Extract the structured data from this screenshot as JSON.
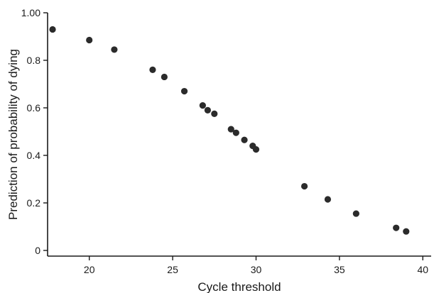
{
  "chart_data": {
    "type": "scatter",
    "title": "",
    "xlabel": "Cycle threshold",
    "ylabel": "Prediction of probability of dying",
    "xlim": [
      17.5,
      40.5
    ],
    "ylim": [
      0,
      1.0
    ],
    "x_ticks": [
      20,
      25,
      30,
      35,
      40
    ],
    "x_tick_labels": [
      "20",
      "25",
      "30",
      "35",
      "40"
    ],
    "y_ticks": [
      0,
      0.2,
      0.4,
      0.6,
      0.8,
      1.0
    ],
    "y_tick_labels": [
      "0",
      "0.2",
      "0.4",
      "0.6",
      "0.8",
      "1.00"
    ],
    "grid": false,
    "point_color": "#2b2b2b",
    "points": [
      {
        "x": 17.8,
        "y": 0.93
      },
      {
        "x": 20.0,
        "y": 0.885
      },
      {
        "x": 21.5,
        "y": 0.845
      },
      {
        "x": 23.8,
        "y": 0.76
      },
      {
        "x": 24.5,
        "y": 0.73
      },
      {
        "x": 25.7,
        "y": 0.67
      },
      {
        "x": 26.8,
        "y": 0.61
      },
      {
        "x": 27.1,
        "y": 0.59
      },
      {
        "x": 27.5,
        "y": 0.575
      },
      {
        "x": 28.5,
        "y": 0.51
      },
      {
        "x": 28.8,
        "y": 0.495
      },
      {
        "x": 29.3,
        "y": 0.465
      },
      {
        "x": 29.8,
        "y": 0.44
      },
      {
        "x": 30.0,
        "y": 0.425
      },
      {
        "x": 32.9,
        "y": 0.27
      },
      {
        "x": 34.3,
        "y": 0.215
      },
      {
        "x": 36.0,
        "y": 0.155
      },
      {
        "x": 38.4,
        "y": 0.095
      },
      {
        "x": 39.0,
        "y": 0.08
      }
    ]
  }
}
